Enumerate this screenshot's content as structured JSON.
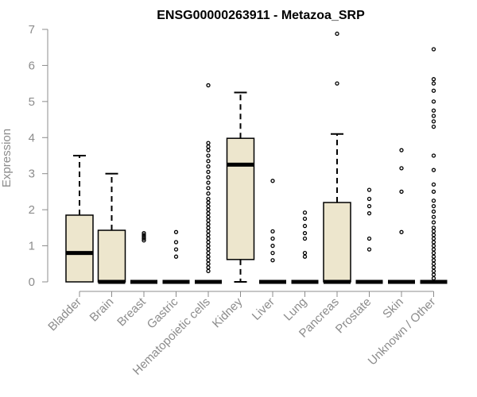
{
  "chart_data": {
    "type": "boxplot",
    "title": "ENSG00000263911 - Metazoa_SRP",
    "xlabel": "",
    "ylabel": "Expression",
    "ylim": [
      0,
      7
    ],
    "yticks": [
      0,
      1,
      2,
      3,
      4,
      5,
      6,
      7
    ],
    "grid": false,
    "legend": "none",
    "colors": {
      "box_fill": "#ede6cd",
      "box_stroke": "#000000",
      "axis": "#8c8c8c",
      "title": "#000000"
    },
    "categories": [
      "Bladder",
      "Brain",
      "Breast",
      "Gastric",
      "Hematopoietic cells",
      "Kidney",
      "Liver",
      "Lung",
      "Pancreas",
      "Prostate",
      "Skin",
      "Unknown / Other"
    ],
    "boxes": [
      {
        "category": "Bladder",
        "whisker_low": 0,
        "q1": 0,
        "median": 0.8,
        "q3": 1.85,
        "whisker_high": 3.5,
        "outliers": []
      },
      {
        "category": "Brain",
        "whisker_low": 0,
        "q1": 0,
        "median": 0,
        "q3": 1.43,
        "whisker_high": 3.0,
        "outliers": []
      },
      {
        "category": "Breast",
        "whisker_low": 0,
        "q1": 0,
        "median": 0,
        "q3": 0,
        "whisker_high": 0,
        "outliers": [
          1.15,
          1.2,
          1.25,
          1.3,
          1.35
        ]
      },
      {
        "category": "Gastric",
        "whisker_low": 0,
        "q1": 0,
        "median": 0,
        "q3": 0,
        "whisker_high": 0,
        "outliers": [
          0.7,
          0.9,
          1.1,
          1.38
        ]
      },
      {
        "category": "Hematopoietic cells",
        "whisker_low": 0,
        "q1": 0,
        "median": 0,
        "q3": 0,
        "whisker_high": 0,
        "outliers": [
          0.3,
          0.4,
          0.5,
          0.6,
          0.7,
          0.8,
          0.9,
          1.0,
          1.1,
          1.2,
          1.3,
          1.4,
          1.5,
          1.6,
          1.7,
          1.8,
          1.9,
          2.0,
          2.1,
          2.2,
          2.3,
          2.45,
          2.6,
          2.75,
          2.9,
          3.05,
          3.2,
          3.35,
          3.5,
          3.65,
          3.75,
          3.85,
          5.45
        ]
      },
      {
        "category": "Kidney",
        "whisker_low": 0,
        "q1": 0.62,
        "median": 3.25,
        "q3": 3.98,
        "whisker_high": 5.25,
        "outliers": []
      },
      {
        "category": "Liver",
        "whisker_low": 0,
        "q1": 0,
        "median": 0,
        "q3": 0,
        "whisker_high": 0,
        "outliers": [
          0.6,
          0.8,
          1.0,
          1.2,
          1.4,
          2.8
        ]
      },
      {
        "category": "Lung",
        "whisker_low": 0,
        "q1": 0,
        "median": 0,
        "q3": 0,
        "whisker_high": 0,
        "outliers": [
          0.7,
          0.8,
          1.2,
          1.35,
          1.55,
          1.75,
          1.92
        ]
      },
      {
        "category": "Pancreas",
        "whisker_low": 0,
        "q1": 0,
        "median": 0,
        "q3": 2.2,
        "whisker_high": 4.1,
        "outliers": [
          5.5,
          6.88
        ]
      },
      {
        "category": "Prostate",
        "whisker_low": 0,
        "q1": 0,
        "median": 0,
        "q3": 0,
        "whisker_high": 0,
        "outliers": [
          0.9,
          1.2,
          1.9,
          2.1,
          2.3,
          2.55
        ]
      },
      {
        "category": "Skin",
        "whisker_low": 0,
        "q1": 0,
        "median": 0,
        "q3": 0,
        "whisker_high": 0,
        "outliers": [
          1.38,
          2.5,
          3.15,
          3.65
        ]
      },
      {
        "category": "Unknown / Other",
        "whisker_low": 0,
        "q1": 0,
        "median": 0,
        "q3": 0,
        "whisker_high": 0,
        "outliers": [
          0.1,
          0.2,
          0.3,
          0.4,
          0.5,
          0.6,
          0.7,
          0.8,
          0.9,
          1.0,
          1.1,
          1.2,
          1.3,
          1.4,
          1.5,
          1.65,
          1.8,
          1.95,
          2.1,
          2.25,
          2.5,
          2.7,
          3.1,
          3.5,
          4.3,
          4.45,
          4.6,
          4.75,
          5.0,
          5.3,
          5.5,
          5.62,
          6.45
        ]
      }
    ]
  }
}
